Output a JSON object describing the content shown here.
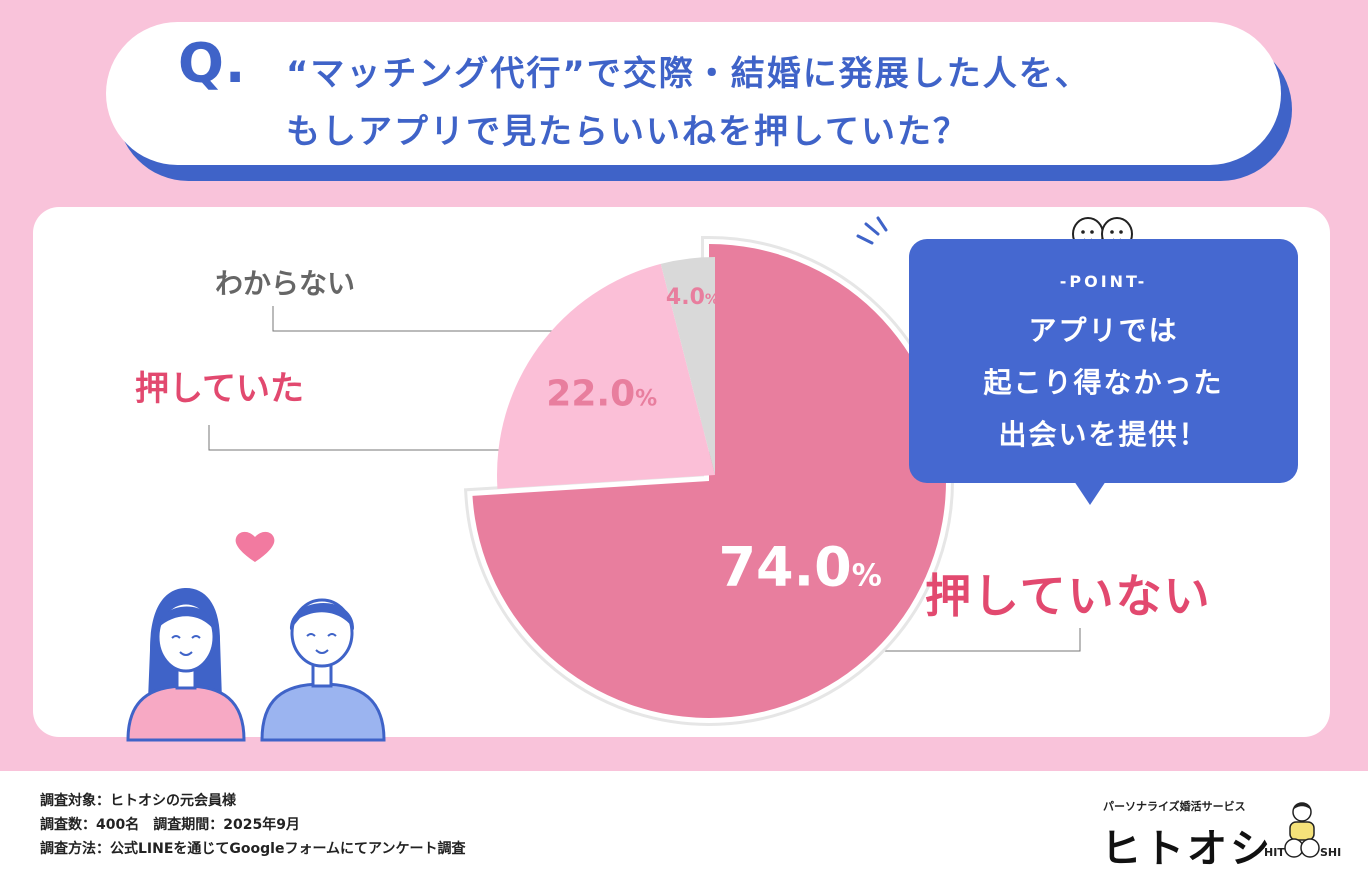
{
  "question": {
    "mark": "Q.",
    "line1": "“マッチング代行”で交際・結婚に発展した人を、",
    "line2": "もしアプリで見たらいいねを押していた？"
  },
  "chart_data": {
    "type": "pie",
    "slices": [
      {
        "label": "押していない",
        "value": 74.0,
        "value_text": "74.0",
        "color": "#e87e9e"
      },
      {
        "label": "押していた",
        "value": 22.0,
        "value_text": "22.0",
        "color": "#fbbfd7"
      },
      {
        "label": "わからない",
        "value": 4.0,
        "value_text": "4.0",
        "color": "#d9d9d9"
      }
    ],
    "unit": "%"
  },
  "labels": {
    "unknown": "わからない",
    "yes": "押していた",
    "no": "押していない"
  },
  "point": {
    "title": "-POINT-",
    "line1": "アプリでは",
    "line2": "起こり得なかった",
    "line3": "出会いを提供！"
  },
  "footer": {
    "target": "調査対象：ヒトオシの元会員様",
    "count": "調査数：400名　調査期間：2025年9月",
    "method": "調査方法：公式LINEを通じてGoogleフォームにてアンケート調査"
  },
  "brand": {
    "tagline": "パーソナライズ婚活サービス",
    "name": "ヒトオシ",
    "logo_text_left": "HIT",
    "logo_text_right": "SHI"
  },
  "colors": {
    "background": "#f9c3da",
    "accent_blue": "#3f63c8",
    "accent_red": "#e2496f"
  }
}
